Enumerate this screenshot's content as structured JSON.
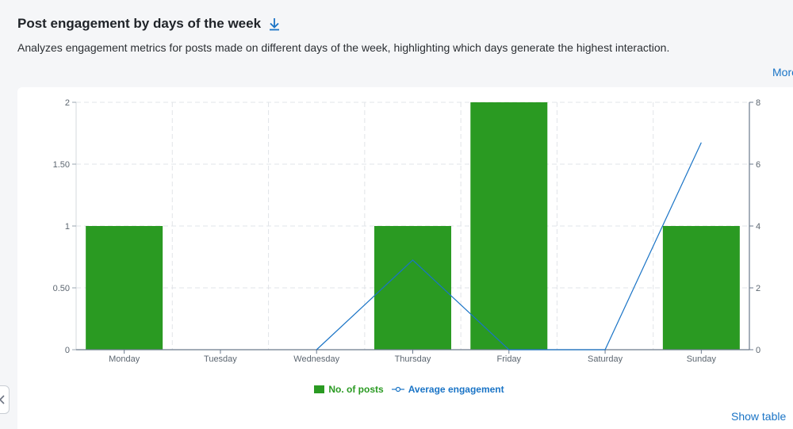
{
  "header": {
    "title": "Post engagement by days of the week",
    "subtitle": "Analyzes engagement metrics for posts made on different days of the week, highlighting which days generate the highest interaction.",
    "more_label": "More"
  },
  "footer": {
    "show_table_label": "Show table"
  },
  "icons": {
    "download": "download-icon",
    "prev": "chevron-left-icon"
  },
  "colors": {
    "bar": "#2a9a22",
    "line": "#1a74c6",
    "link": "#1a74c6"
  },
  "chart_data": {
    "type": "bar",
    "categories": [
      "Monday",
      "Tuesday",
      "Wednesday",
      "Thursday",
      "Friday",
      "Saturday",
      "Sunday"
    ],
    "series": [
      {
        "name": "No. of posts",
        "type": "bar",
        "axis": "left",
        "values": [
          1,
          0,
          0,
          1,
          2,
          0,
          1
        ]
      },
      {
        "name": "Average engagement",
        "type": "line",
        "axis": "right",
        "values": [
          null,
          null,
          0,
          2.9,
          0,
          0,
          6.7
        ]
      }
    ],
    "y_left": {
      "ylim": [
        0,
        2
      ],
      "ticks": [
        0,
        0.5,
        1,
        1.5,
        2
      ],
      "tick_labels": [
        "0",
        "0.50",
        "1",
        "1.50",
        "2"
      ]
    },
    "y_right": {
      "ylim": [
        0,
        8
      ],
      "ticks": [
        0,
        2,
        4,
        6,
        8
      ],
      "tick_labels": [
        "0",
        "2",
        "4",
        "6",
        "8"
      ]
    },
    "grid": true,
    "legend": "bottom-center"
  }
}
